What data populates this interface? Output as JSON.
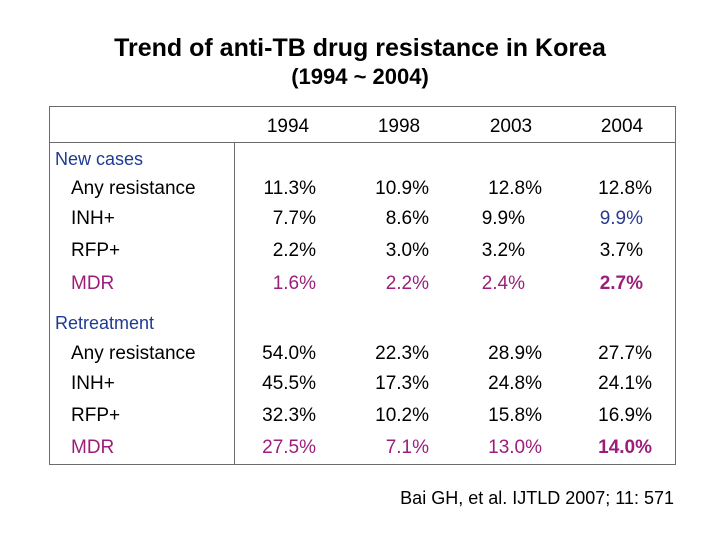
{
  "title": "Trend of anti-TB drug resistance in Korea",
  "subtitle": "(1994 ~ 2004)",
  "columns": [
    "1994",
    "1998",
    "2003",
    "2004"
  ],
  "sections": [
    {
      "label": "New cases",
      "rows": [
        {
          "label": "Any resistance",
          "values": [
            "11.3%",
            "10.9%",
            "12.8%",
            "12.8%"
          ]
        },
        {
          "label": "INH+",
          "values": [
            "7.7%",
            "8.6%",
            "9.9%",
            "9.9%"
          ]
        },
        {
          "label": "RFP+",
          "values": [
            "2.2%",
            "3.0%",
            "3.2%",
            "3.7%"
          ]
        },
        {
          "label": "MDR",
          "values": [
            "1.6%",
            "2.2%",
            "2.4%",
            "2.7%"
          ]
        }
      ]
    },
    {
      "label": "Retreatment",
      "rows": [
        {
          "label": "Any resistance",
          "values": [
            "54.0%",
            "22.3%",
            "28.9%",
            "27.7%"
          ]
        },
        {
          "label": "INH+",
          "values": [
            "45.5%",
            "17.3%",
            "24.8%",
            "24.1%"
          ]
        },
        {
          "label": "RFP+",
          "values": [
            "32.3%",
            "10.2%",
            "15.8%",
            "16.9%"
          ]
        },
        {
          "label": "MDR",
          "values": [
            "27.5%",
            "7.1%",
            "13.0%",
            "14.0%"
          ]
        }
      ]
    }
  ],
  "citation": "Bai GH, et al. IJTLD 2007; 11: 571",
  "colors": {
    "section_label": "#1f3a93",
    "mdr": "#9b1f7a",
    "highlight": "#2a3a8f"
  }
}
